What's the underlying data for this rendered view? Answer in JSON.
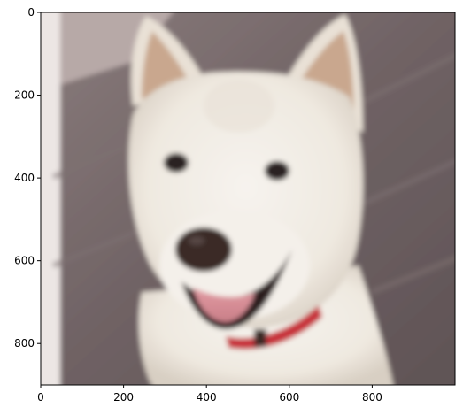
{
  "image": {
    "subject": "white dog (Shiba/Jindo-like) with red collar, smiling with tongue out, against wooden floor background"
  },
  "axes": {
    "x_ticks": [
      "0",
      "200",
      "400",
      "600",
      "800"
    ],
    "y_ticks": [
      "0",
      "200",
      "400",
      "600",
      "800"
    ],
    "x_range": [
      0,
      1000
    ],
    "y_range": [
      900,
      0
    ]
  },
  "colors": {
    "floor": "#6f6264",
    "floor_light": "#8a7d7c",
    "wall": "#ece8e6",
    "fur": "#f3efe8",
    "fur_shadow": "#d9d2c8",
    "ear_inner": "#c9a78e",
    "eye": "#2a2220",
    "nose": "#3a2a28",
    "mouth": "#2a1c1c",
    "tongue": "#d98f97",
    "collar": "#c8323a"
  }
}
